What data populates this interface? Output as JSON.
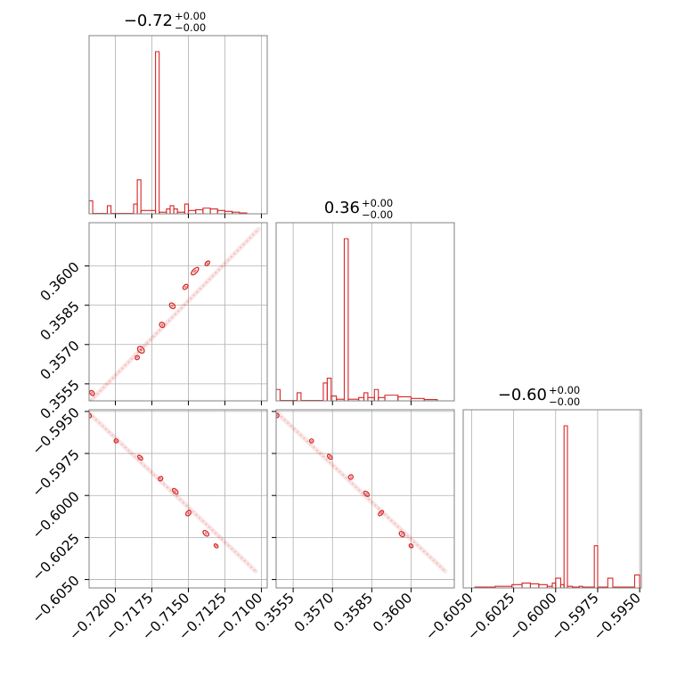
{
  "chart_data": {
    "type": "corner",
    "color": "#d62728",
    "grid": true,
    "parameters": [
      {
        "title": "−0.72",
        "sup": "+0.00",
        "sub": "−0.00",
        "range": [
          -0.7218,
          -0.7096
        ],
        "ticks": [
          -0.72,
          -0.7175,
          -0.715,
          -0.7125,
          -0.71
        ],
        "tick_labels": [
          "−0.7200",
          "−0.7175",
          "−0.7150",
          "−0.7125",
          "−0.7100"
        ]
      },
      {
        "title": "0.36",
        "sup": "+0.00",
        "sub": "−0.00",
        "range": [
          0.35485,
          0.36165
        ],
        "ticks": [
          0.3555,
          0.357,
          0.3585,
          0.36
        ],
        "tick_labels": [
          "0.3555",
          "0.3570",
          "0.3585",
          "0.3600"
        ]
      },
      {
        "title": "−0.60",
        "sup": "+0.00",
        "sub": "−0.00",
        "range": [
          -0.6055,
          -0.5949
        ],
        "ticks": [
          -0.605,
          -0.6025,
          -0.6,
          -0.5975,
          -0.595
        ],
        "tick_labels": [
          "−0.6050",
          "−0.6025",
          "−0.6000",
          "−0.5975",
          "−0.5950"
        ]
      }
    ],
    "histograms": [
      {
        "param": 0,
        "bins": [
          [
            -0.7218,
            -0.72155,
            0.08
          ],
          [
            -0.72155,
            -0.72055,
            0
          ],
          [
            -0.72055,
            -0.7203,
            0.05
          ],
          [
            -0.7203,
            -0.71875,
            0
          ],
          [
            -0.71875,
            -0.7185,
            0.06
          ],
          [
            -0.7185,
            -0.71825,
            0.21
          ],
          [
            -0.71825,
            -0.71725,
            0.02
          ],
          [
            -0.71725,
            -0.717,
            1.0
          ],
          [
            -0.717,
            -0.7165,
            0.01
          ],
          [
            -0.7165,
            -0.71625,
            0.03
          ],
          [
            -0.71625,
            -0.716,
            0.05
          ],
          [
            -0.716,
            -0.71575,
            0.03
          ],
          [
            -0.71575,
            -0.71525,
            0.01
          ],
          [
            -0.71525,
            -0.715,
            0.06
          ],
          [
            -0.715,
            -0.7145,
            0.02
          ],
          [
            -0.7145,
            -0.714,
            0.025
          ],
          [
            -0.714,
            -0.7135,
            0.035
          ],
          [
            -0.7135,
            -0.713,
            0.03
          ],
          [
            -0.713,
            -0.7125,
            0.02
          ],
          [
            -0.7125,
            -0.712,
            0.015
          ],
          [
            -0.712,
            -0.7115,
            0.01
          ],
          [
            -0.7115,
            -0.711,
            0.005
          ]
        ]
      },
      {
        "param": 1,
        "bins": [
          [
            0.35485,
            0.355,
            0.07
          ],
          [
            0.355,
            0.35565,
            0
          ],
          [
            0.35565,
            0.3558,
            0.05
          ],
          [
            0.3558,
            0.35665,
            0
          ],
          [
            0.35665,
            0.3568,
            0.11
          ],
          [
            0.3568,
            0.35695,
            0.14
          ],
          [
            0.35695,
            0.35715,
            0.03
          ],
          [
            0.35715,
            0.35745,
            0.01
          ],
          [
            0.35745,
            0.3576,
            1.0
          ],
          [
            0.3576,
            0.358,
            0.01
          ],
          [
            0.358,
            0.3582,
            0.02
          ],
          [
            0.3582,
            0.35835,
            0.05
          ],
          [
            0.35835,
            0.3586,
            0.02
          ],
          [
            0.3586,
            0.35875,
            0.07
          ],
          [
            0.35875,
            0.359,
            0.02
          ],
          [
            0.359,
            0.3595,
            0.035
          ],
          [
            0.3595,
            0.36,
            0.025
          ],
          [
            0.36,
            0.3605,
            0.015
          ],
          [
            0.3605,
            0.361,
            0.008
          ]
        ]
      },
      {
        "param": 2,
        "bins": [
          [
            -0.6048,
            -0.6036,
            0.005
          ],
          [
            -0.6036,
            -0.6026,
            0.01
          ],
          [
            -0.6026,
            -0.602,
            0.02
          ],
          [
            -0.602,
            -0.6015,
            0.03
          ],
          [
            -0.6015,
            -0.601,
            0.025
          ],
          [
            -0.601,
            -0.6005,
            0.02
          ],
          [
            -0.6005,
            -0.6002,
            0.01
          ],
          [
            -0.6002,
            -0.6,
            0.03
          ],
          [
            -0.6,
            -0.5997,
            0.06
          ],
          [
            -0.5997,
            -0.5995,
            0.02
          ],
          [
            -0.5995,
            -0.5993,
            1.0
          ],
          [
            -0.5993,
            -0.599,
            0.01
          ],
          [
            -0.599,
            -0.5986,
            0.005
          ],
          [
            -0.5986,
            -0.5984,
            0.01
          ],
          [
            -0.5984,
            -0.5977,
            0.005
          ],
          [
            -0.5977,
            -0.5975,
            0.26
          ],
          [
            -0.5975,
            -0.5969,
            0.005
          ],
          [
            -0.5969,
            -0.5966,
            0.06
          ],
          [
            -0.5966,
            -0.5953,
            0.005
          ],
          [
            -0.5953,
            -0.595,
            0.08
          ]
        ]
      }
    ],
    "scatter_pairs": [
      {
        "x_param": 0,
        "y_param": 1,
        "trend": [
          [
            -0.7217,
            0.35485
          ],
          [
            -0.7102,
            0.3614
          ]
        ],
        "contours": [
          [
            -0.7216,
            0.35515,
            0.9,
            1.3
          ],
          [
            -0.7185,
            0.3565,
            1.0,
            0.9
          ],
          [
            -0.71825,
            0.3568,
            1.3,
            1.8
          ],
          [
            -0.7168,
            0.35775,
            1.1,
            1.3
          ],
          [
            -0.7161,
            0.35848,
            1.1,
            1.5
          ],
          [
            -0.7152,
            0.3592,
            1.4,
            0.9
          ],
          [
            -0.71455,
            0.3598,
            2.2,
            1.0
          ],
          [
            -0.7137,
            0.3601,
            1.3,
            0.8
          ]
        ]
      },
      {
        "x_param": 0,
        "y_param": 2,
        "trend": [
          [
            -0.7218,
            -0.5951
          ],
          [
            -0.7104,
            -0.6045
          ]
        ],
        "contours": [
          [
            -0.7218,
            -0.59525,
            1.1,
            1.0
          ],
          [
            -0.71995,
            -0.59675,
            0.9,
            0.9
          ],
          [
            -0.7183,
            -0.59775,
            1.4,
            0.8
          ],
          [
            -0.7169,
            -0.599,
            0.9,
            1.1
          ],
          [
            -0.7159,
            -0.59975,
            1.6,
            0.9
          ],
          [
            -0.715,
            -0.60105,
            1.0,
            1.4
          ],
          [
            -0.7138,
            -0.60225,
            1.6,
            1.0
          ],
          [
            -0.7131,
            -0.603,
            1.1,
            0.7
          ]
        ]
      },
      {
        "x_param": 1,
        "y_param": 2,
        "trend": [
          [
            0.3549,
            -0.5951
          ],
          [
            0.3613,
            -0.6045
          ]
        ],
        "contours": [
          [
            0.35488,
            -0.59525,
            0.9,
            1.0
          ],
          [
            0.3562,
            -0.59675,
            0.9,
            0.9
          ],
          [
            0.3569,
            -0.5977,
            1.4,
            0.8
          ],
          [
            0.3577,
            -0.5989,
            1.0,
            1.1
          ],
          [
            0.3583,
            -0.5999,
            1.5,
            0.9
          ],
          [
            0.35885,
            -0.60105,
            0.8,
            1.5
          ],
          [
            0.35965,
            -0.6023,
            1.4,
            1.0
          ],
          [
            0.36,
            -0.603,
            1.0,
            0.8
          ]
        ]
      }
    ]
  }
}
